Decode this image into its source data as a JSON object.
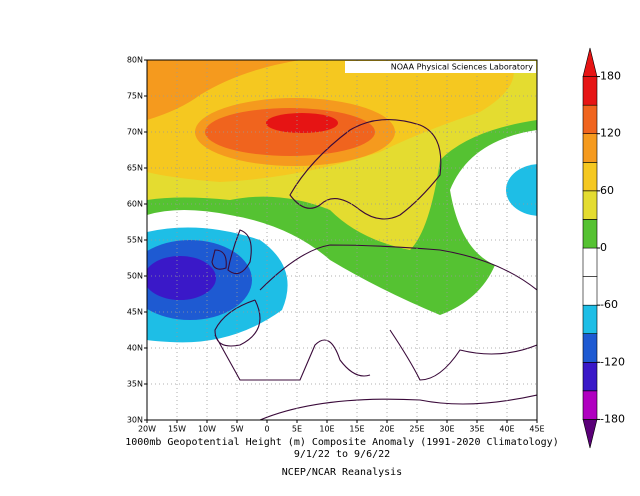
{
  "header": "NOAA Physical Sciences Laboratory",
  "lat_labels": [
    "30N",
    "35N",
    "40N",
    "45N",
    "50N",
    "55N",
    "60N",
    "65N",
    "70N",
    "75N",
    "80N"
  ],
  "lon_labels": [
    "20W",
    "15W",
    "10W",
    "5W",
    "0",
    "5E",
    "10E",
    "15E",
    "20E",
    "25E",
    "30E",
    "35E",
    "40E",
    "45E"
  ],
  "caption": [
    "1000mb Geopotential Height (m) Composite Anomaly (1991-2020 Climatology)",
    "9/1/22  to 9/6/22"
  ],
  "source": "NCEP/NCAR Reanalysis",
  "colorbar": {
    "lim": [
      -210,
      210
    ],
    "ticks": [
      180,
      120,
      60,
      0,
      -60,
      -120,
      -180
    ],
    "colors": [
      "#5a0078",
      "#b000c0",
      "#3a18c8",
      "#1e5ad2",
      "#1ebee6",
      "#ffffff",
      "#ffffff",
      "#55c232",
      "#e4dc30",
      "#f5c820",
      "#f59a1e",
      "#f0641e",
      "#e61414",
      "#e61414"
    ]
  }
}
